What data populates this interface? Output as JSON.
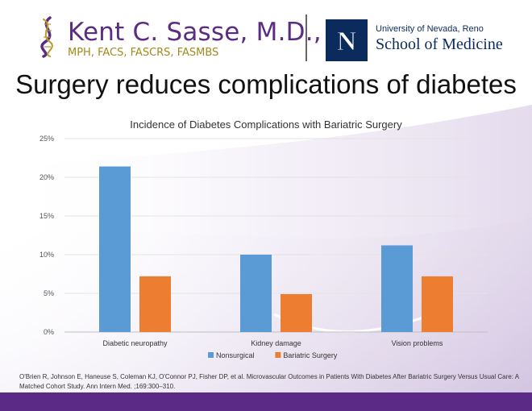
{
  "header": {
    "name": "Kent C. Sasse, M.D.,",
    "credentials": "MPH, FACS, FASCRS, FASMBS",
    "university": "University of Nevada, Reno",
    "school": "School of Medicine",
    "logo_letter": "N"
  },
  "slide": {
    "title": "Surgery reduces complications of diabetes"
  },
  "chart_data": {
    "type": "bar",
    "title": "Incidence of Diabetes Complications with Bariatric Surgery",
    "categories": [
      "Diabetic neuropathy",
      "Kidney damage",
      "Vision problems"
    ],
    "series": [
      {
        "name": "Nonsurgical",
        "color": "#5b9bd5",
        "values": [
          21.4,
          10.0,
          11.2
        ]
      },
      {
        "name": "Bariatric Surgery",
        "color": "#ed7d31",
        "values": [
          7.2,
          4.9,
          7.2
        ]
      }
    ],
    "ylim": [
      0,
      25
    ],
    "yticks": [
      0,
      5,
      10,
      15,
      20,
      25
    ],
    "ytick_labels": [
      "0%",
      "5%",
      "10%",
      "15%",
      "20%",
      "25%"
    ],
    "grid": true,
    "legend": "bottom"
  },
  "citation": "O'Brien R, Johnson E, Haneuse S, Coleman KJ, O'Connor PJ, Fisher DP, et al. Microvascular Outcomes in Patients With Diabetes After Bariatric Surgery Versus Usual Care: A Matched Cohort Study. Ann Intern Med. ;169:300–310.",
  "colors": {
    "brand_purple": "#5b2a86",
    "unr_navy": "#0b2b5c"
  }
}
